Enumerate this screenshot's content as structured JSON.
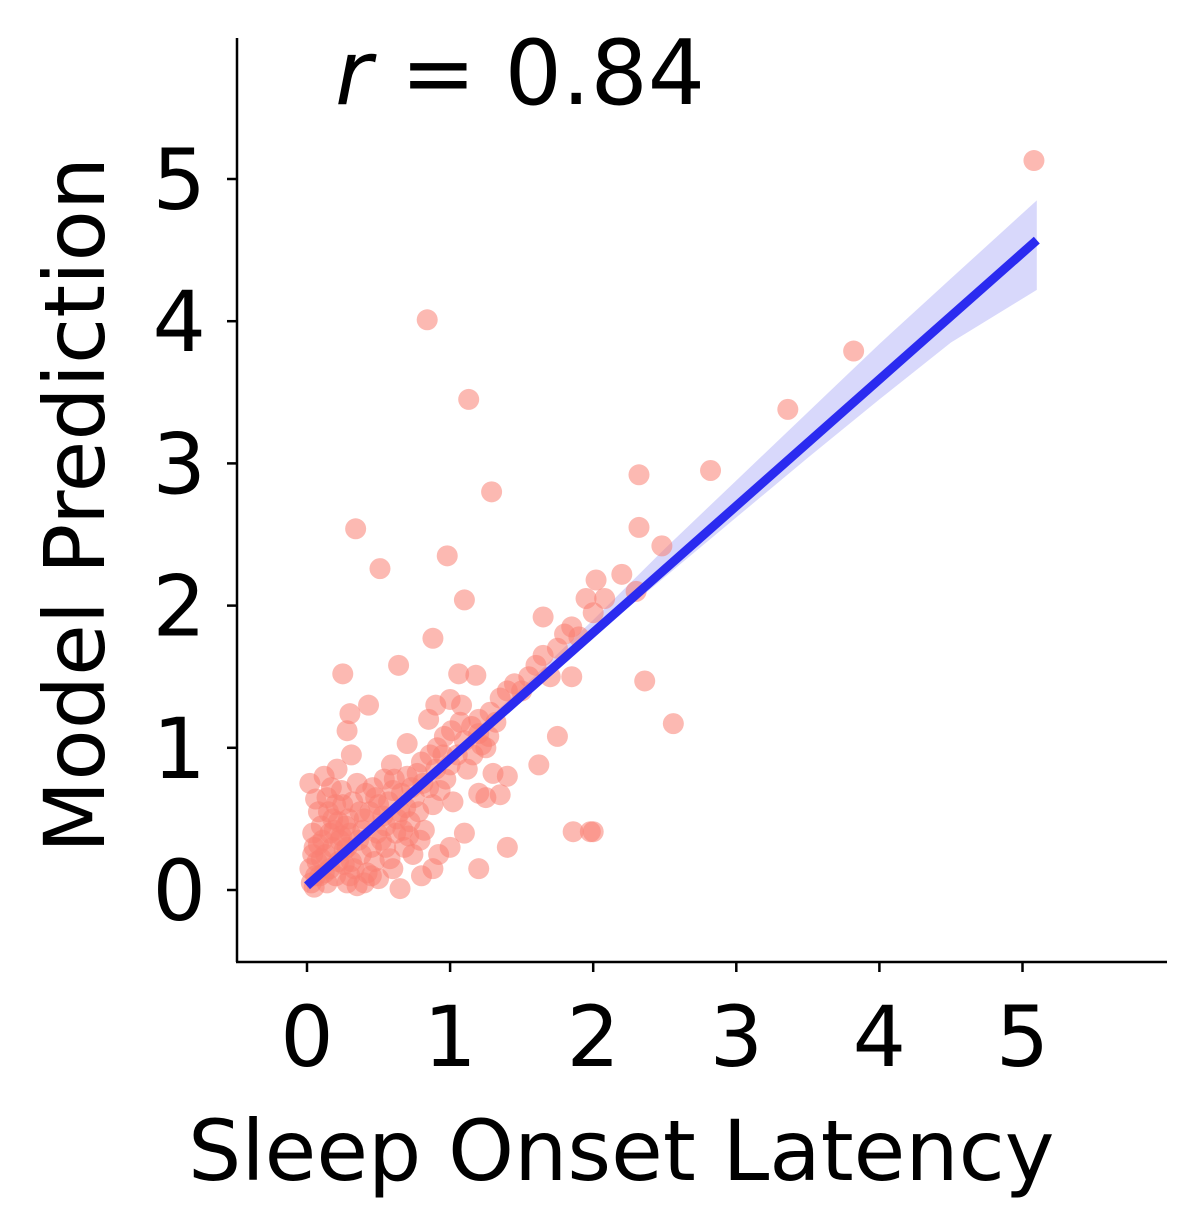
{
  "chart_data": {
    "type": "scatter",
    "xlabel": "Sleep Onset Latency",
    "ylabel": "Model Prediction",
    "annotation": {
      "var": "r",
      "text": " = 0.84"
    },
    "xlim": [
      -0.5,
      6.0
    ],
    "ylim": [
      -0.5,
      6.0
    ],
    "xticks": [
      0,
      1,
      2,
      3,
      4,
      5
    ],
    "yticks": [
      0,
      1,
      2,
      3,
      4,
      5
    ],
    "grid": false,
    "colors": {
      "points": "#fa8072",
      "line": "#2b2bf0",
      "band": "#d8d8fb"
    },
    "regression": {
      "x": [
        0,
        5.1
      ],
      "y": [
        0.03,
        4.57
      ],
      "band_x": [
        0,
        0.5,
        1.0,
        1.5,
        2.0,
        2.5,
        3.0,
        3.5,
        4.0,
        4.5,
        5.1
      ],
      "band_lower": [
        -0.02,
        0.44,
        0.9,
        1.35,
        1.78,
        2.2,
        2.62,
        3.04,
        3.45,
        3.85,
        4.22
      ],
      "band_upper": [
        0.08,
        0.52,
        0.96,
        1.42,
        1.9,
        2.4,
        2.88,
        3.36,
        3.84,
        4.3,
        4.85
      ]
    },
    "points": [
      [
        0.84,
        4.01
      ],
      [
        1.13,
        3.45
      ],
      [
        1.29,
        2.8
      ],
      [
        0.34,
        2.54
      ],
      [
        0.51,
        2.26
      ],
      [
        0.98,
        2.35
      ],
      [
        1.1,
        2.04
      ],
      [
        0.88,
        1.77
      ],
      [
        0.64,
        1.58
      ],
      [
        0.25,
        1.52
      ],
      [
        1.06,
        1.52
      ],
      [
        1.18,
        1.51
      ],
      [
        0.43,
        1.3
      ],
      [
        0.3,
        1.24
      ],
      [
        0.28,
        1.12
      ],
      [
        0.31,
        0.95
      ],
      [
        0.7,
        1.03
      ],
      [
        0.9,
        1.3
      ],
      [
        1.0,
        1.34
      ],
      [
        1.08,
        1.3
      ],
      [
        0.85,
        1.2
      ],
      [
        1.2,
        1.1
      ],
      [
        1.25,
        1.0
      ],
      [
        1.3,
        0.82
      ],
      [
        1.4,
        0.8
      ],
      [
        1.2,
        0.68
      ],
      [
        1.25,
        0.65
      ],
      [
        1.35,
        0.67
      ],
      [
        1.4,
        0.3
      ],
      [
        1.2,
        0.15
      ],
      [
        1.1,
        0.4
      ],
      [
        1.0,
        0.3
      ],
      [
        0.92,
        0.25
      ],
      [
        0.88,
        0.15
      ],
      [
        0.8,
        0.1
      ],
      [
        0.65,
        0.01
      ],
      [
        0.35,
        0.03
      ],
      [
        0.05,
        0.02
      ],
      [
        0.02,
        0.75
      ],
      [
        0.06,
        0.64
      ],
      [
        0.1,
        0.45
      ],
      [
        0.12,
        0.8
      ],
      [
        0.15,
        0.55
      ],
      [
        0.18,
        0.3
      ],
      [
        0.22,
        0.2
      ],
      [
        0.25,
        0.6
      ],
      [
        0.3,
        0.4
      ],
      [
        0.35,
        0.75
      ],
      [
        0.4,
        0.5
      ],
      [
        0.45,
        0.3
      ],
      [
        0.5,
        0.6
      ],
      [
        0.55,
        0.45
      ],
      [
        0.6,
        0.7
      ],
      [
        0.65,
        0.55
      ],
      [
        0.7,
        0.8
      ],
      [
        0.75,
        0.65
      ],
      [
        0.8,
        0.9
      ],
      [
        0.85,
        0.72
      ],
      [
        0.9,
        0.85
      ],
      [
        0.95,
        0.95
      ],
      [
        1.0,
        0.88
      ],
      [
        1.05,
        0.95
      ],
      [
        1.1,
        1.05
      ],
      [
        1.15,
        1.15
      ],
      [
        1.2,
        1.2
      ],
      [
        1.28,
        1.25
      ],
      [
        1.35,
        1.35
      ],
      [
        1.4,
        1.4
      ],
      [
        1.45,
        1.45
      ],
      [
        1.5,
        1.4
      ],
      [
        1.55,
        1.5
      ],
      [
        1.6,
        1.58
      ],
      [
        1.65,
        1.65
      ],
      [
        1.7,
        1.5
      ],
      [
        1.75,
        1.7
      ],
      [
        1.8,
        1.8
      ],
      [
        1.85,
        1.85
      ],
      [
        1.9,
        1.78
      ],
      [
        1.95,
        2.05
      ],
      [
        2.0,
        1.95
      ],
      [
        2.02,
        2.18
      ],
      [
        2.08,
        2.05
      ],
      [
        2.2,
        2.22
      ],
      [
        2.3,
        2.1
      ],
      [
        2.32,
        2.55
      ],
      [
        2.32,
        2.92
      ],
      [
        2.48,
        2.42
      ],
      [
        2.36,
        1.47
      ],
      [
        2.56,
        1.17
      ],
      [
        1.85,
        1.5
      ],
      [
        1.75,
        1.08
      ],
      [
        1.62,
        0.88
      ],
      [
        1.65,
        1.92
      ],
      [
        1.86,
        0.41
      ],
      [
        1.98,
        0.41
      ],
      [
        2.0,
        0.41
      ],
      [
        2.82,
        2.95
      ],
      [
        3.36,
        3.38
      ],
      [
        3.82,
        3.79
      ],
      [
        5.08,
        5.13
      ],
      [
        0.2,
        0.1
      ],
      [
        0.28,
        0.05
      ],
      [
        0.33,
        0.15
      ],
      [
        0.38,
        0.25
      ],
      [
        0.42,
        0.12
      ],
      [
        0.47,
        0.2
      ],
      [
        0.52,
        0.35
      ],
      [
        0.58,
        0.22
      ],
      [
        0.62,
        0.4
      ],
      [
        0.68,
        0.3
      ],
      [
        0.72,
        0.48
      ],
      [
        0.78,
        0.55
      ],
      [
        0.82,
        0.42
      ],
      [
        0.88,
        0.6
      ],
      [
        0.93,
        0.7
      ],
      [
        0.97,
        0.78
      ],
      [
        1.02,
        0.62
      ],
      [
        0.05,
        0.3
      ],
      [
        0.07,
        0.2
      ],
      [
        0.09,
        0.1
      ],
      [
        0.11,
        0.35
      ],
      [
        0.13,
        0.25
      ],
      [
        0.16,
        0.15
      ],
      [
        0.19,
        0.42
      ],
      [
        0.23,
        0.35
      ],
      [
        0.26,
        0.28
      ],
      [
        0.29,
        0.5
      ],
      [
        0.32,
        0.62
      ],
      [
        0.37,
        0.55
      ],
      [
        0.41,
        0.68
      ],
      [
        0.46,
        0.72
      ],
      [
        0.49,
        0.4
      ],
      [
        0.53,
        0.52
      ],
      [
        0.57,
        0.62
      ],
      [
        0.61,
        0.78
      ],
      [
        0.66,
        0.68
      ],
      [
        0.69,
        0.58
      ],
      [
        0.73,
        0.72
      ],
      [
        0.77,
        0.82
      ],
      [
        0.81,
        0.75
      ],
      [
        0.86,
        0.95
      ],
      [
        0.91,
        1.0
      ],
      [
        0.96,
        1.08
      ],
      [
        1.01,
        1.12
      ],
      [
        1.07,
        1.18
      ],
      [
        0.03,
        0.05
      ],
      [
        0.04,
        0.4
      ],
      [
        0.08,
        0.55
      ],
      [
        0.14,
        0.65
      ],
      [
        0.17,
        0.72
      ],
      [
        0.21,
        0.85
      ],
      [
        0.24,
        0.7
      ],
      [
        0.27,
        0.45
      ],
      [
        0.31,
        0.2
      ],
      [
        0.36,
        0.35
      ],
      [
        0.39,
        0.42
      ],
      [
        0.44,
        0.55
      ],
      [
        0.48,
        0.65
      ],
      [
        0.54,
        0.78
      ],
      [
        0.59,
        0.88
      ],
      [
        0.63,
        0.5
      ],
      [
        0.67,
        0.42
      ],
      [
        0.71,
        0.38
      ],
      [
        0.74,
        0.25
      ],
      [
        0.79,
        0.35
      ],
      [
        1.12,
        0.85
      ],
      [
        1.16,
        0.95
      ],
      [
        1.22,
        1.02
      ],
      [
        1.27,
        1.08
      ],
      [
        1.32,
        1.18
      ],
      [
        0.02,
        0.15
      ],
      [
        0.04,
        0.25
      ],
      [
        0.06,
        0.1
      ],
      [
        0.08,
        0.32
      ],
      [
        0.1,
        0.22
      ],
      [
        0.12,
        0.12
      ],
      [
        0.14,
        0.05
      ],
      [
        0.16,
        0.4
      ],
      [
        0.18,
        0.5
      ],
      [
        0.2,
        0.6
      ],
      [
        0.22,
        0.48
      ],
      [
        0.24,
        0.38
      ],
      [
        0.26,
        0.18
      ],
      [
        0.28,
        0.3
      ],
      [
        0.3,
        0.1
      ],
      [
        0.55,
        0.3
      ],
      [
        0.6,
        0.15
      ],
      [
        0.45,
        0.1
      ],
      [
        0.4,
        0.05
      ],
      [
        0.5,
        0.08
      ]
    ]
  }
}
